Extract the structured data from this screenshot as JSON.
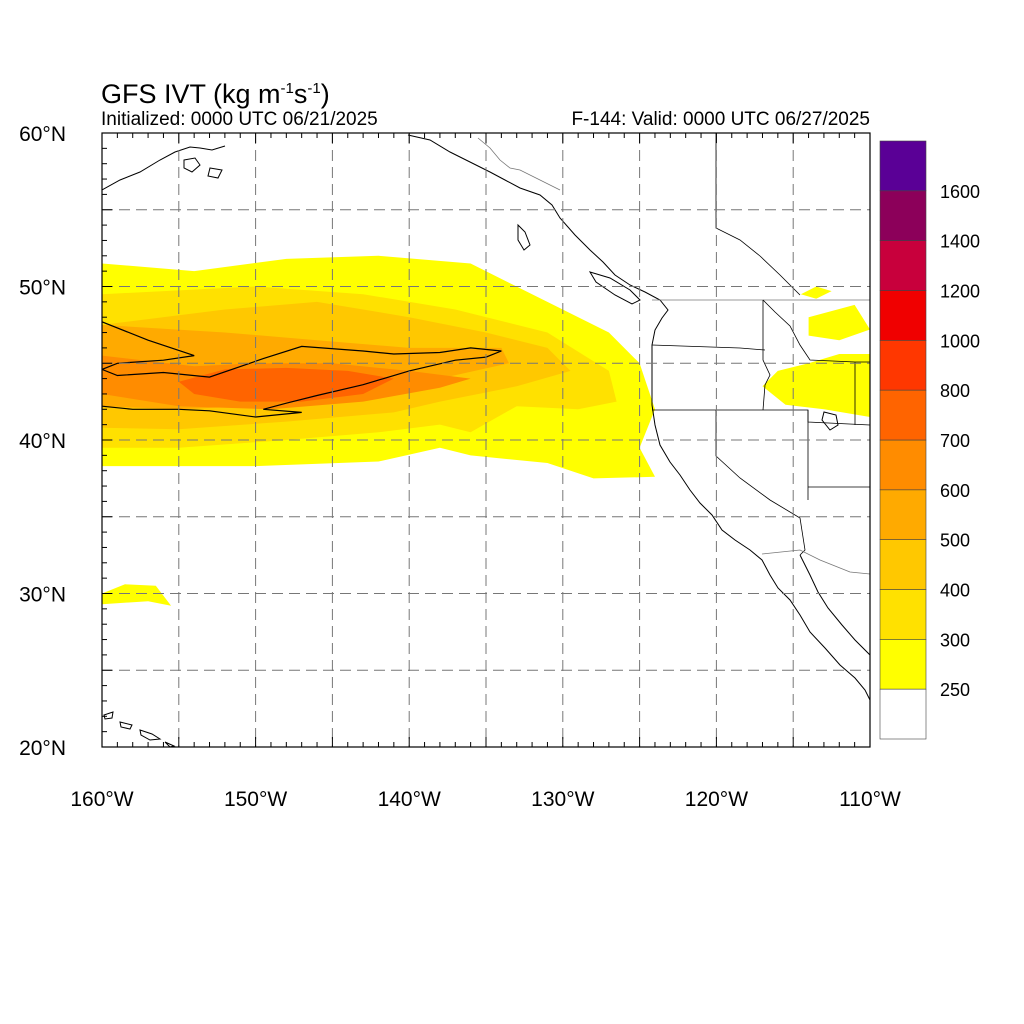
{
  "header": {
    "title_main": "GFS IVT (kg m",
    "title_sup1": "-1",
    "title_mid": "s",
    "title_sup2": "-1",
    "title_end": ")",
    "initialized": "Initialized: 0000 UTC 06/21/2025",
    "valid": "F-144: Valid: 0000 UTC 06/27/2025"
  },
  "map": {
    "lon_range": [
      -160,
      -110
    ],
    "lat_range": [
      20,
      60
    ],
    "lon_ticks": [
      {
        "value": -160,
        "label": "160°W"
      },
      {
        "value": -150,
        "label": "150°W"
      },
      {
        "value": -140,
        "label": "140°W"
      },
      {
        "value": -130,
        "label": "130°W"
      },
      {
        "value": -120,
        "label": "120°W"
      },
      {
        "value": -110,
        "label": "110°W"
      }
    ],
    "lat_ticks": [
      {
        "value": 60,
        "label": "60°N"
      },
      {
        "value": 50,
        "label": "50°N"
      },
      {
        "value": 40,
        "label": "40°N"
      },
      {
        "value": 30,
        "label": "30°N"
      },
      {
        "value": 20,
        "label": "20°N"
      }
    ],
    "grid_lon": [
      -155,
      -150,
      -145,
      -140,
      -135,
      -130,
      -125,
      -120,
      -115
    ],
    "grid_lat": [
      55,
      50,
      45,
      40,
      35,
      30,
      25
    ]
  },
  "colorbar": {
    "levels": [
      "250",
      "300",
      "400",
      "500",
      "600",
      "700",
      "800",
      "1000",
      "1200",
      "1400",
      "1600"
    ],
    "colors": [
      "#ffffff",
      "#ffff00",
      "#ffe100",
      "#ffc800",
      "#ffaa00",
      "#ff8c00",
      "#ff6400",
      "#ff3700",
      "#f00000",
      "#c8003c",
      "#8c005a",
      "#5a0096"
    ]
  },
  "ivt": {
    "regions": [
      {
        "level": "250",
        "color": "#ffff00",
        "points": [
          [
            -160,
            51.5
          ],
          [
            -154,
            51
          ],
          [
            -148,
            51.8
          ],
          [
            -142,
            52
          ],
          [
            -136,
            51.5
          ],
          [
            -131,
            49
          ],
          [
            -127,
            47
          ],
          [
            -125,
            45
          ],
          [
            -124,
            42
          ],
          [
            -125,
            39.5
          ],
          [
            -124,
            37.6
          ],
          [
            -128,
            37.5
          ],
          [
            -131,
            38.5
          ],
          [
            -136,
            39
          ],
          [
            -138,
            39.5
          ],
          [
            -142,
            38.6
          ],
          [
            -150,
            38.3
          ],
          [
            -160,
            38.3
          ]
        ]
      },
      {
        "level": "250",
        "color": "#ffff00",
        "points": [
          [
            -160,
            30
          ],
          [
            -158.5,
            30.6
          ],
          [
            -156.5,
            30.5
          ],
          [
            -155.5,
            29.2
          ],
          [
            -157,
            29.5
          ],
          [
            -160,
            29.3
          ]
        ]
      },
      {
        "level": "250",
        "color": "#ffff00",
        "points": [
          [
            -114,
            45
          ],
          [
            -112,
            45.6
          ],
          [
            -110,
            45.6
          ],
          [
            -110,
            41.5
          ],
          [
            -113,
            42
          ],
          [
            -115.5,
            42.3
          ],
          [
            -117,
            43.5
          ],
          [
            -116,
            44.5
          ]
        ]
      },
      {
        "level": "250",
        "color": "#ffff00",
        "points": [
          [
            -114.5,
            49.5
          ],
          [
            -113.5,
            50
          ],
          [
            -112.5,
            49.7
          ],
          [
            -113.5,
            49.2
          ]
        ]
      },
      {
        "level": "250",
        "color": "#ffff00",
        "points": [
          [
            -114,
            48
          ],
          [
            -111,
            48.8
          ],
          [
            -110,
            47.2
          ],
          [
            -112,
            46.5
          ],
          [
            -114,
            46.8
          ]
        ]
      },
      {
        "level": "300",
        "color": "#ffe100",
        "points": [
          [
            -160,
            49.5
          ],
          [
            -150,
            50
          ],
          [
            -143,
            49.5
          ],
          [
            -137,
            48.5
          ],
          [
            -131,
            47
          ],
          [
            -127,
            44.5
          ],
          [
            -126.5,
            42.5
          ],
          [
            -129,
            42
          ],
          [
            -133,
            42.2
          ],
          [
            -136,
            40.5
          ],
          [
            -138,
            41
          ],
          [
            -142,
            40.5
          ],
          [
            -148,
            40
          ],
          [
            -155,
            39.5
          ],
          [
            -160,
            39.5
          ]
        ]
      },
      {
        "level": "400",
        "color": "#ffc800",
        "points": [
          [
            -160,
            47.5
          ],
          [
            -152,
            48.5
          ],
          [
            -146,
            49
          ],
          [
            -140,
            48
          ],
          [
            -135,
            47
          ],
          [
            -131,
            46
          ],
          [
            -129.5,
            44.5
          ],
          [
            -133,
            43.5
          ],
          [
            -138,
            42.5
          ],
          [
            -141,
            41.8
          ],
          [
            -148,
            41.2
          ],
          [
            -155,
            40.7
          ],
          [
            -160,
            40.8
          ]
        ]
      },
      {
        "level": "500",
        "color": "#ffaa00",
        "points": [
          [
            -160,
            47.5
          ],
          [
            -152,
            47
          ],
          [
            -146,
            46.5
          ],
          [
            -140,
            46
          ],
          [
            -134,
            46
          ],
          [
            -133.5,
            45
          ],
          [
            -138,
            44
          ],
          [
            -142,
            43
          ],
          [
            -148,
            42.3
          ],
          [
            -155,
            42
          ],
          [
            -160,
            42.2
          ]
        ]
      },
      {
        "level": "600",
        "color": "#ff8c00",
        "points": [
          [
            -160,
            45.5
          ],
          [
            -154,
            44.8
          ],
          [
            -150,
            45
          ],
          [
            -145,
            45
          ],
          [
            -140,
            44.5
          ],
          [
            -136,
            44
          ],
          [
            -138,
            43.4
          ],
          [
            -143,
            42.5
          ],
          [
            -149,
            42
          ],
          [
            -155,
            42.2
          ],
          [
            -160,
            43
          ]
        ]
      },
      {
        "level": "700",
        "color": "#ff6400",
        "points": [
          [
            -155,
            43.8
          ],
          [
            -152,
            44.6
          ],
          [
            -148,
            44.7
          ],
          [
            -144,
            44.5
          ],
          [
            -141,
            44
          ],
          [
            -143,
            43
          ],
          [
            -147,
            42.5
          ],
          [
            -151,
            42.5
          ],
          [
            -154,
            43
          ]
        ]
      }
    ],
    "contour_points": [
      [
        -160,
        47.7
      ],
      [
        -157,
        46.5
      ],
      [
        -154,
        45.5
      ],
      [
        -156,
        45.2
      ],
      [
        -159,
        45
      ],
      [
        -160,
        44.6
      ],
      [
        -159,
        44.2
      ],
      [
        -156,
        44.4
      ],
      [
        -153,
        44.1
      ],
      [
        -149.5,
        45.3
      ],
      [
        -147,
        46.1
      ],
      [
        -143,
        45.8
      ],
      [
        -141,
        45.6
      ],
      [
        -138,
        45.7
      ],
      [
        -136,
        46
      ],
      [
        -134,
        45.8
      ],
      [
        -135,
        45.4
      ],
      [
        -137,
        45.2
      ],
      [
        -140,
        44.5
      ],
      [
        -143,
        43.6
      ],
      [
        -146,
        42.9
      ],
      [
        -148,
        42.4
      ],
      [
        -149.5,
        42
      ],
      [
        -147,
        41.8
      ],
      [
        -150,
        41.5
      ],
      [
        -153,
        41.9
      ],
      [
        -155,
        42
      ],
      [
        -158,
        42
      ],
      [
        -160,
        42.2
      ]
    ]
  }
}
